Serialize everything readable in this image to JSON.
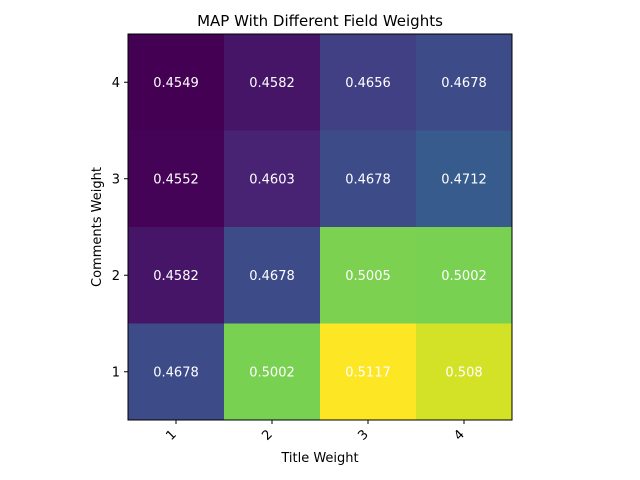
{
  "chart_data": {
    "type": "heatmap",
    "title": "MAP With Different Field Weights",
    "xlabel": "Title Weight",
    "ylabel": "Comments Weight",
    "x_categories": [
      "1",
      "2",
      "3",
      "4"
    ],
    "y_categories": [
      "4",
      "3",
      "2",
      "1"
    ],
    "values": [
      [
        0.4549,
        0.4582,
        0.4656,
        0.4678
      ],
      [
        0.4552,
        0.4603,
        0.4678,
        0.4712
      ],
      [
        0.4582,
        0.4678,
        0.5005,
        0.5002
      ],
      [
        0.4678,
        0.5002,
        0.5117,
        0.508
      ]
    ],
    "value_labels": [
      [
        "0.4549",
        "0.4582",
        "0.4656",
        "0.4678"
      ],
      [
        "0.4552",
        "0.4603",
        "0.4678",
        "0.4712"
      ],
      [
        "0.4582",
        "0.4678",
        "0.5005",
        "0.5002"
      ],
      [
        "0.4678",
        "0.5002",
        "0.5117",
        "0.508"
      ]
    ],
    "colormap": "viridis",
    "value_range": [
      0.4549,
      0.5117
    ],
    "grid": false,
    "legend": "none"
  }
}
